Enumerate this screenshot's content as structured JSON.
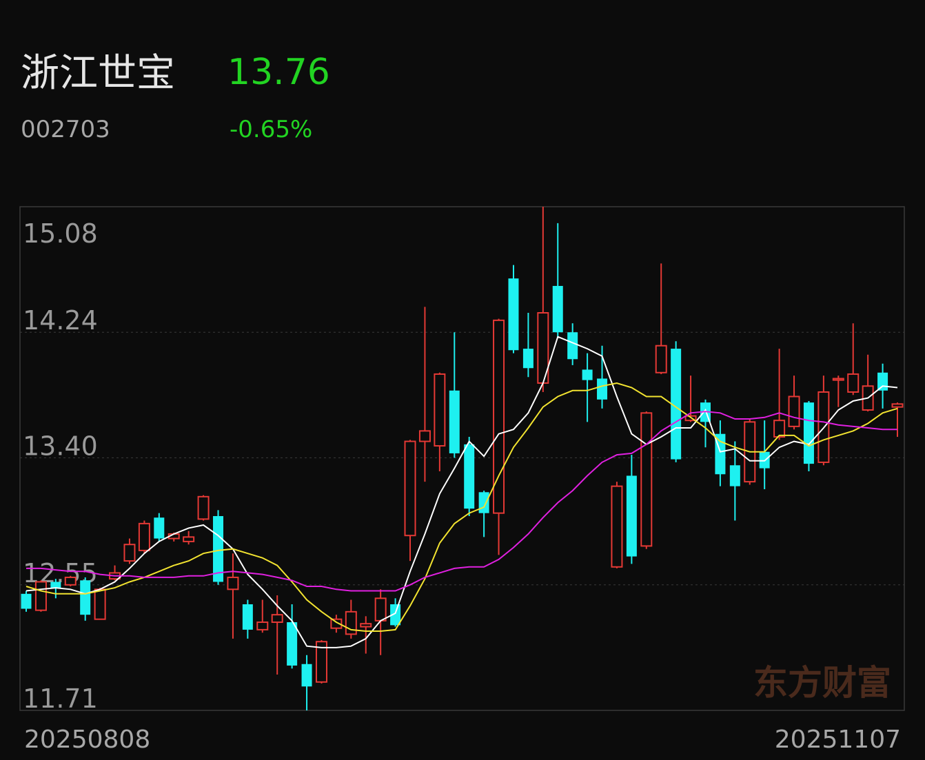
{
  "header": {
    "name": "浙江世宝",
    "price": "13.76",
    "code": "002703",
    "change": "-0.65%"
  },
  "chart_data": {
    "type": "candlestick",
    "watermark": "东方财富",
    "categories": [
      "20250808",
      null,
      null,
      null,
      null,
      null,
      null,
      null,
      null,
      null,
      null,
      null,
      null,
      null,
      null,
      null,
      null,
      null,
      null,
      null,
      null,
      null,
      null,
      null,
      null,
      null,
      null,
      null,
      null,
      null,
      null,
      null,
      null,
      null,
      null,
      null,
      null,
      null,
      null,
      null,
      null,
      null,
      null,
      null,
      null,
      null,
      null,
      null,
      null,
      null,
      null,
      null,
      null,
      null,
      null,
      null,
      null,
      null,
      null,
      "20251107"
    ],
    "open": [
      12.49,
      12.38,
      12.57,
      12.55,
      12.58,
      12.32,
      12.59,
      12.71,
      12.78,
      13.0,
      12.86,
      12.84,
      12.99,
      13.01,
      12.52,
      12.42,
      12.25,
      12.3,
      12.3,
      12.02,
      11.9,
      12.26,
      12.22,
      12.27,
      12.31,
      12.42,
      12.88,
      13.51,
      13.48,
      13.85,
      13.49,
      13.17,
      13.03,
      14.6,
      14.13,
      13.9,
      14.55,
      14.24,
      13.99,
      13.93,
      12.67,
      13.28,
      12.81,
      13.97,
      14.13,
      13.65,
      13.77,
      13.56,
      13.35,
      13.24,
      13.44,
      13.54,
      13.61,
      13.77,
      13.37,
      13.92,
      13.84,
      13.72,
      13.97,
      13.74
    ],
    "high": [
      12.51,
      12.58,
      12.59,
      12.61,
      12.6,
      12.53,
      12.68,
      12.86,
      12.98,
      13.03,
      12.9,
      12.91,
      13.15,
      13.05,
      12.76,
      12.45,
      12.45,
      12.48,
      12.42,
      12.08,
      12.18,
      12.35,
      12.45,
      12.34,
      12.52,
      12.46,
      13.52,
      14.41,
      13.97,
      14.24,
      13.54,
      13.18,
      14.33,
      14.69,
      14.37,
      15.08,
      14.97,
      14.3,
      14.1,
      14.15,
      13.24,
      13.42,
      13.71,
      14.7,
      14.18,
      13.95,
      13.79,
      13.65,
      13.51,
      13.66,
      13.65,
      14.13,
      13.95,
      13.78,
      13.95,
      13.95,
      14.3,
      14.09,
      14.03,
      13.77
    ],
    "low": [
      12.37,
      12.37,
      12.46,
      12.54,
      12.31,
      12.32,
      12.58,
      12.69,
      12.76,
      12.84,
      12.84,
      12.82,
      12.98,
      12.55,
      12.19,
      12.19,
      12.23,
      11.95,
      11.99,
      11.71,
      11.89,
      12.23,
      12.19,
      12.09,
      12.08,
      12.27,
      12.71,
      13.24,
      13.31,
      13.4,
      13.01,
      12.87,
      12.75,
      14.1,
      13.94,
      13.84,
      14.2,
      14.02,
      13.64,
      13.73,
      12.66,
      12.69,
      12.79,
      13.96,
      13.37,
      13.64,
      13.47,
      13.21,
      12.98,
      13.22,
      13.19,
      13.52,
      13.59,
      13.31,
      13.35,
      13.74,
      13.82,
      13.71,
      13.73,
      13.54
    ],
    "close": [
      12.39,
      12.57,
      12.53,
      12.6,
      12.35,
      12.52,
      12.63,
      12.82,
      12.96,
      12.86,
      12.89,
      12.87,
      13.14,
      12.57,
      12.6,
      12.25,
      12.3,
      12.35,
      12.01,
      11.87,
      12.17,
      12.32,
      12.37,
      12.29,
      12.46,
      12.28,
      13.51,
      13.58,
      13.96,
      13.43,
      13.06,
      13.03,
      14.32,
      14.12,
      14.0,
      14.37,
      14.24,
      14.06,
      13.92,
      13.79,
      13.21,
      12.74,
      13.7,
      14.15,
      13.39,
      13.68,
      13.64,
      13.29,
      13.21,
      13.64,
      13.33,
      13.65,
      13.81,
      13.36,
      13.84,
      13.93,
      13.96,
      13.88,
      13.85,
      13.76
    ],
    "up_color": "#e53935",
    "down_color": "#1ef0f0",
    "series": [
      {
        "color": "#ffffff",
        "values": [
          12.51,
          12.52,
          12.53,
          12.52,
          12.49,
          12.52,
          12.57,
          12.66,
          12.76,
          12.84,
          12.89,
          12.93,
          12.95,
          12.88,
          12.79,
          12.62,
          12.52,
          12.41,
          12.31,
          12.14,
          12.13,
          12.13,
          12.14,
          12.19,
          12.31,
          12.36,
          12.64,
          12.89,
          13.16,
          13.33,
          13.51,
          13.41,
          13.56,
          13.59,
          13.7,
          13.9,
          14.21,
          14.17,
          14.13,
          14.08,
          13.81,
          13.56,
          13.49,
          13.54,
          13.6,
          13.6,
          13.72,
          13.44,
          13.46,
          13.38,
          13.38,
          13.47,
          13.51,
          13.49,
          13.6,
          13.72,
          13.78,
          13.8,
          13.88,
          13.87
        ]
      },
      {
        "color": "#f2e330",
        "values": [
          12.54,
          12.51,
          12.49,
          12.49,
          12.49,
          12.51,
          12.53,
          12.57,
          12.6,
          12.64,
          12.68,
          12.71,
          12.76,
          12.78,
          12.79,
          12.76,
          12.73,
          12.68,
          12.57,
          12.45,
          12.37,
          12.3,
          12.25,
          12.24,
          12.24,
          12.25,
          12.41,
          12.59,
          12.83,
          12.96,
          13.03,
          13.07,
          13.28,
          13.47,
          13.6,
          13.74,
          13.81,
          13.85,
          13.85,
          13.88,
          13.9,
          13.87,
          13.81,
          13.81,
          13.74,
          13.67,
          13.6,
          13.51,
          13.47,
          13.44,
          13.44,
          13.55,
          13.55,
          13.48,
          13.52,
          13.55,
          13.58,
          13.63,
          13.7,
          13.73
        ]
      },
      {
        "color": "#e020e0",
        "values": [
          12.66,
          12.66,
          12.65,
          12.64,
          12.64,
          12.62,
          12.61,
          12.61,
          12.6,
          12.6,
          12.6,
          12.61,
          12.61,
          12.63,
          12.64,
          12.63,
          12.62,
          12.6,
          12.58,
          12.54,
          12.54,
          12.52,
          12.51,
          12.51,
          12.51,
          12.51,
          12.55,
          12.6,
          12.63,
          12.66,
          12.67,
          12.67,
          12.72,
          12.8,
          12.89,
          13.0,
          13.1,
          13.18,
          13.28,
          13.37,
          13.42,
          13.43,
          13.49,
          13.58,
          13.64,
          13.7,
          13.71,
          13.7,
          13.66,
          13.66,
          13.67,
          13.7,
          13.67,
          13.65,
          13.64,
          13.62,
          13.61,
          13.6,
          13.59,
          13.59
        ]
      }
    ],
    "ylim": [
      11.71,
      15.08
    ],
    "yticks": [
      15.08,
      14.24,
      {
        "value": 13.4,
        "label": "13.40"
      },
      12.55,
      11.71
    ],
    "grid": true
  }
}
